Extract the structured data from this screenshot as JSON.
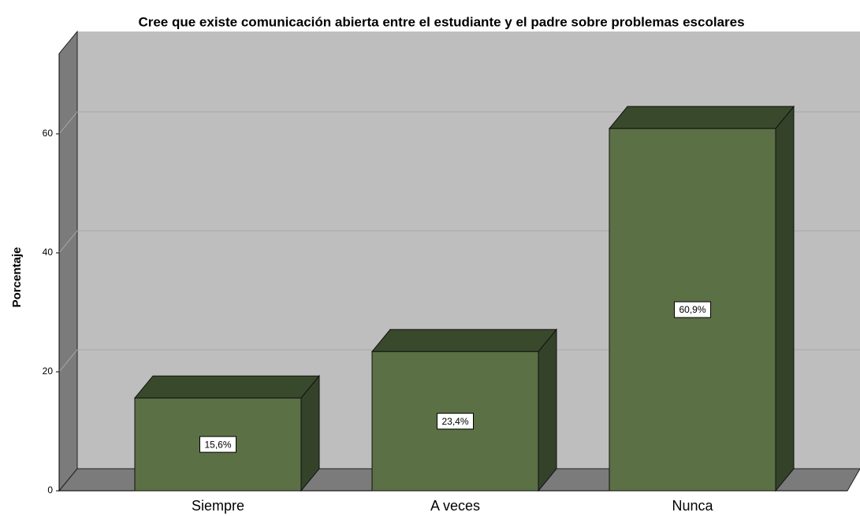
{
  "chart_data": {
    "type": "bar3d",
    "title": "Cree que existe comunicación abierta entre el estudiante y el padre sobre problemas escolares",
    "y_label": "Porcentaje",
    "categories": [
      "Siempre",
      "A veces",
      "Nunca"
    ],
    "values": [
      15.6,
      23.4,
      60.9
    ],
    "value_labels": [
      "15,6%",
      "23,4%",
      "60,9%"
    ],
    "color": "#5b7045",
    "ylim": [
      0,
      73.5
    ],
    "yticks": [
      0,
      20,
      40,
      60
    ],
    "grid": true
  }
}
